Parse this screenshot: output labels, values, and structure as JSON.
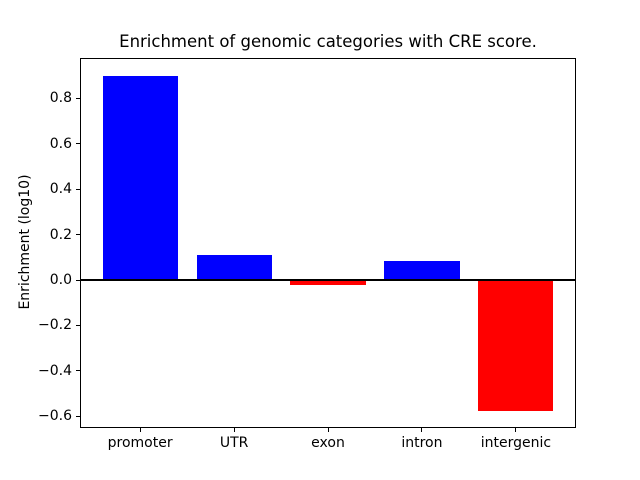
{
  "chart_data": {
    "type": "bar",
    "title": "Enrichment of genomic categories with CRE score.",
    "ylabel": "Enrichment (log10)",
    "xlabel": "",
    "categories": [
      "promoter",
      "UTR",
      "exon",
      "intron",
      "intergenic"
    ],
    "values": [
      0.9,
      0.11,
      -0.02,
      0.085,
      -0.575
    ],
    "bar_width": 0.8,
    "positive_color": "#0000ff",
    "negative_color": "#ff0000",
    "axis_color": "#000000",
    "background_color": "#ffffff",
    "xlim": [
      -0.64,
      4.64
    ],
    "ylim": [
      -0.65,
      0.98
    ],
    "yticks": [
      0.8,
      0.6,
      0.4,
      0.2,
      0.0,
      -0.2,
      -0.4,
      -0.6
    ],
    "ytick_labels": [
      "0.8",
      "0.6",
      "0.4",
      "0.2",
      "0.0",
      "−0.2",
      "−0.4",
      "−0.6"
    ],
    "zero_line": true,
    "grid": false,
    "legend": null
  }
}
